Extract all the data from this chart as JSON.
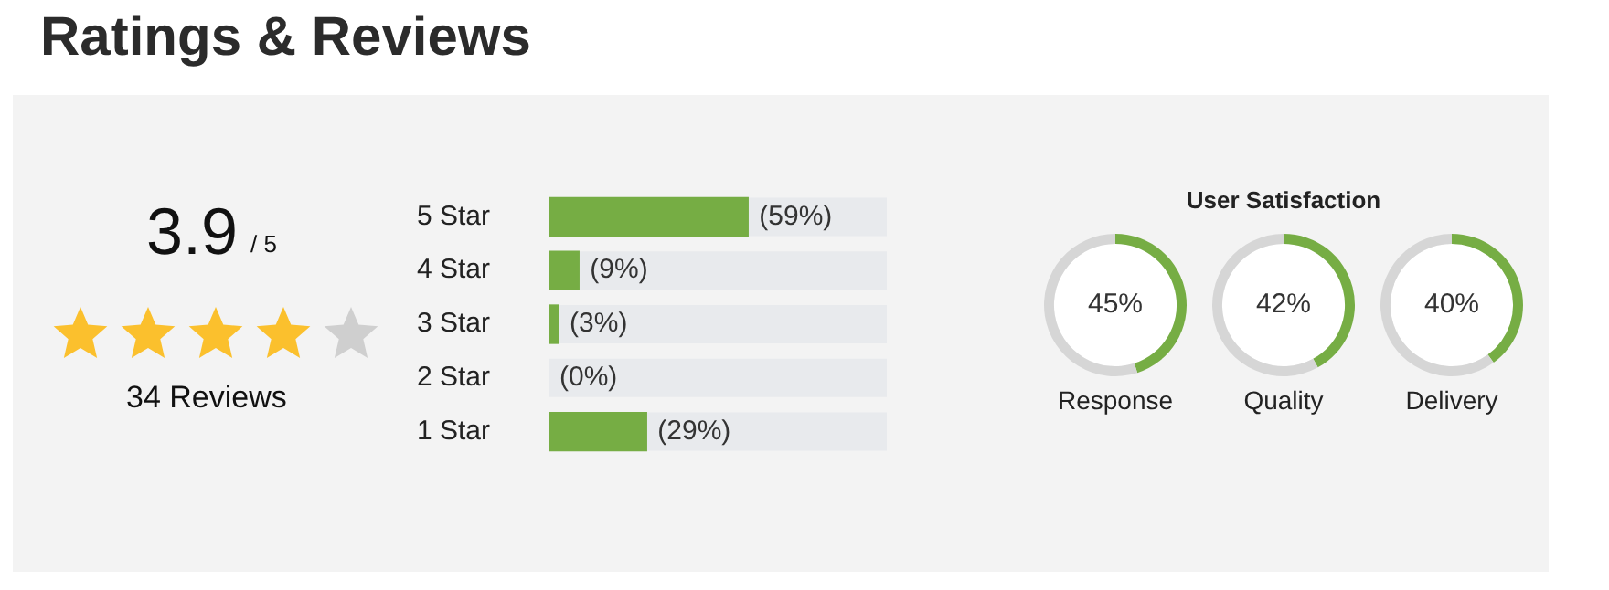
{
  "chart_data": [
    {
      "type": "other",
      "title": "Ratings & Reviews",
      "annotations": [
        "3.9",
        "/ 5",
        "34 Reviews"
      ]
    },
    {
      "type": "bar",
      "orientation": "horizontal",
      "categories": [
        "5 Star",
        "4 Star",
        "3 Star",
        "2 Star",
        "1 Star"
      ],
      "values": [
        59,
        9,
        3,
        0,
        29
      ],
      "color": "#76ad44",
      "xlim": [
        0,
        100
      ],
      "tick_labels": "y",
      "value_labels": [
        "(59%)",
        "(9%)",
        "(3%)",
        "(0%)",
        "(29%)"
      ]
    },
    {
      "type": "other",
      "title": "User Satisfaction"
    },
    {
      "type": "donut",
      "title": "Response",
      "categories": [
        null,
        null
      ],
      "values": [
        45,
        55
      ],
      "colors": [
        "#76ad44",
        "#d6d6d6"
      ],
      "value_labels": [
        "45%",
        null
      ]
    },
    {
      "type": "donut",
      "title": "Quality",
      "categories": [
        null,
        null
      ],
      "values": [
        42,
        58
      ],
      "colors": [
        "#76ad44",
        "#d6d6d6"
      ],
      "value_labels": [
        "42%",
        null
      ]
    },
    {
      "type": "donut",
      "title": "Delivery",
      "categories": [
        null,
        null
      ],
      "values": [
        40,
        60
      ],
      "colors": [
        "#76ad44",
        "#d6d6d6"
      ],
      "value_labels": [
        "40%",
        null
      ]
    }
  ]
}
